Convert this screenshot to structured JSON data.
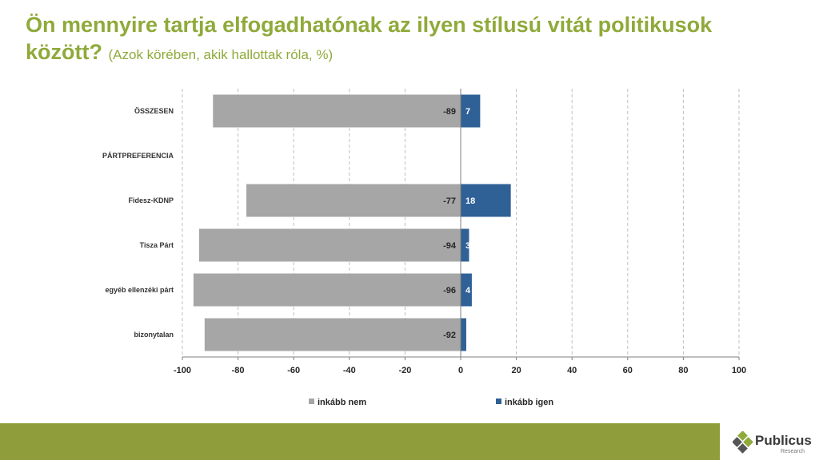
{
  "header": {
    "title_main": "Ön mennyire tartja elfogadhatónak az ilyen stílusú vitát politikusok között?",
    "title_sub": "(Azok körében, akik hallottak róla, %)"
  },
  "chart_data": {
    "type": "bar",
    "orientation": "horizontal",
    "stacked": true,
    "categories": [
      "ÖSSZESEN",
      "PÁRTPREFERENCIA",
      "Fidesz-KDNP",
      "Tisza Párt",
      "egyéb ellenzéki párt",
      "bizonytalan"
    ],
    "series": [
      {
        "name": "inkább nem",
        "color": "#a6a6a6",
        "values": [
          -89,
          null,
          -77,
          -94,
          -96,
          -92
        ]
      },
      {
        "name": "inkább igen",
        "color": "#2f6096",
        "values": [
          7,
          null,
          18,
          3,
          4,
          2
        ]
      }
    ],
    "value_labels": {
      "inkább nem": [
        "-89",
        "",
        "-77",
        "-94",
        "-96",
        "-92"
      ],
      "inkább igen": [
        "7",
        "",
        "18",
        "3",
        "4",
        ""
      ]
    },
    "xlim": [
      -100,
      100
    ],
    "xticks": [
      -100,
      -80,
      -60,
      -40,
      -20,
      0,
      20,
      40,
      60,
      80,
      100
    ],
    "grid": true,
    "legend_position": "bottom"
  },
  "footer": {
    "logo_name": "Publicus",
    "logo_sub": "Research",
    "bar_color": "#8f9e3a"
  }
}
